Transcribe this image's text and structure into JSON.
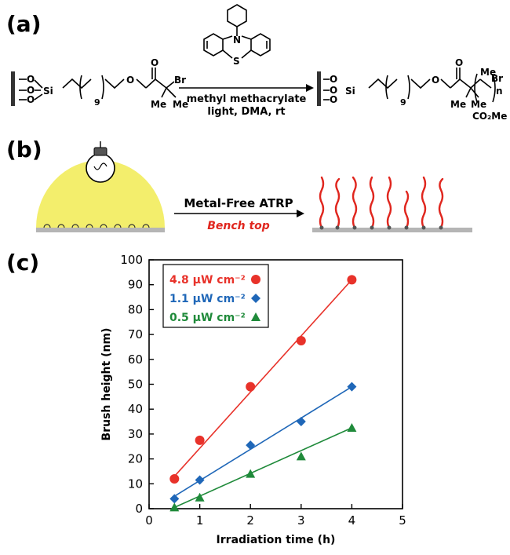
{
  "panels": {
    "a": {
      "label": "(a)",
      "reactant": {
        "br": "Br",
        "me": "Me",
        "me2": "Me",
        "repeat": "9",
        "si": "Si",
        "o": "O"
      },
      "catalyst": {
        "n": "N",
        "s": "S"
      },
      "conditions": {
        "line1": "methyl methacrylate",
        "line2": "light, DMA, rt"
      },
      "product": {
        "br": "Br",
        "me_top": "Me",
        "n": "n",
        "ester": "CO₂Me",
        "me_left": "Me",
        "me_mid": "Me",
        "repeat": "9",
        "si": "Si"
      }
    },
    "b": {
      "label": "(b)",
      "arrow_top": "Metal-Free ATRP",
      "arrow_bottom": "Bench top",
      "colors": {
        "glow": "#f2ec5c",
        "chains": "#e0261e",
        "surface": "#b5b5b5",
        "subtitle": "#e0261e"
      }
    },
    "c": {
      "label": "(c)"
    }
  },
  "chart_data": {
    "type": "scatter",
    "xlabel": "Irradiation time (h)",
    "ylabel": "Brush height (nm)",
    "xlim": [
      0,
      5
    ],
    "ylim": [
      0,
      100
    ],
    "xticks": [
      0,
      1,
      2,
      3,
      4,
      5
    ],
    "yticks": [
      0,
      10,
      20,
      30,
      40,
      50,
      60,
      70,
      80,
      90,
      100
    ],
    "grid": false,
    "legend_position": "top-left",
    "series": [
      {
        "name": "4.8 μW cm⁻²",
        "color": "#e8322a",
        "marker": "circle",
        "x": [
          0.5,
          1,
          2,
          3,
          4
        ],
        "y": [
          12,
          27.5,
          49,
          67.5,
          92
        ],
        "fit": [
          [
            0.5,
            13
          ],
          [
            4,
            92
          ]
        ]
      },
      {
        "name": "1.1 μW cm⁻²",
        "color": "#1f67b8",
        "marker": "diamond",
        "x": [
          0.5,
          1,
          2,
          3,
          4
        ],
        "y": [
          4,
          11.5,
          25.5,
          35,
          49
        ],
        "fit": [
          [
            0.5,
            5
          ],
          [
            4,
            49
          ]
        ]
      },
      {
        "name": "0.5 μW cm⁻²",
        "color": "#1f8a3a",
        "marker": "triangle",
        "x": [
          0.5,
          1,
          2,
          3,
          4
        ],
        "y": [
          0.5,
          4.5,
          14,
          21,
          32.5
        ],
        "fit": [
          [
            0.5,
            0.5
          ],
          [
            4,
            32.5
          ]
        ]
      }
    ]
  }
}
